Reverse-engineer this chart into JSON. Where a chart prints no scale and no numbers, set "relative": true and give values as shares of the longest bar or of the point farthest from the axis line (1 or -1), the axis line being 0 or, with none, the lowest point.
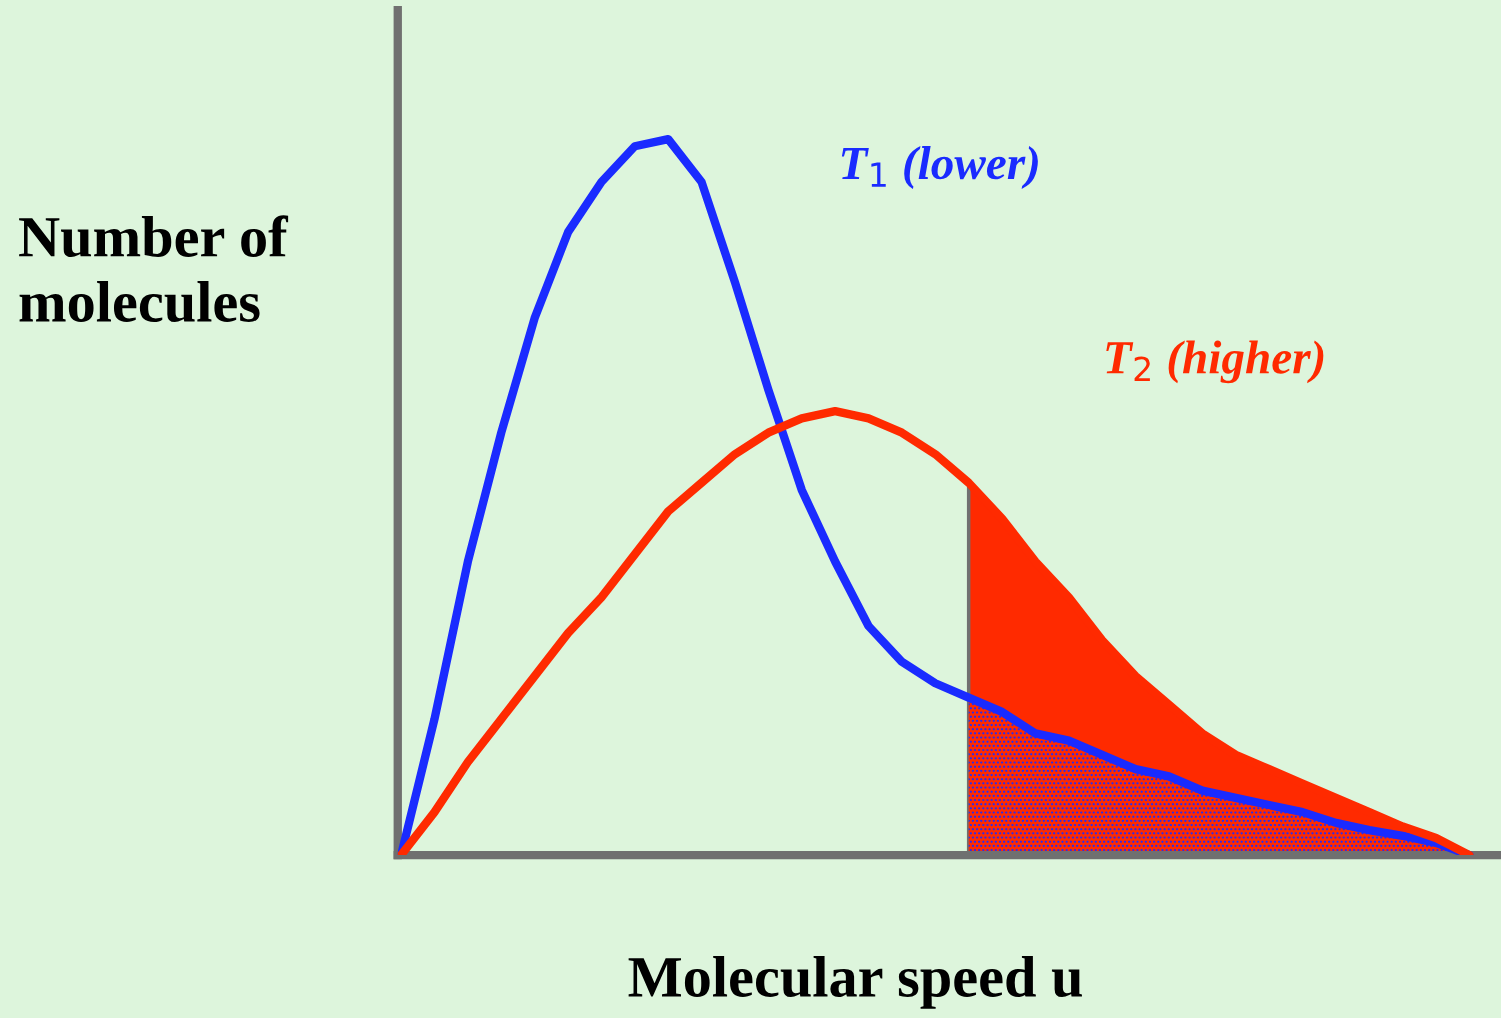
{
  "chart_data": {
    "type": "line",
    "relative": true,
    "xlabel": "Molecular speed u",
    "ylabel": "Number of\nmolecules",
    "categories": [
      null,
      null,
      null,
      null,
      null,
      null,
      null,
      null,
      null,
      null,
      null,
      null,
      null,
      null,
      null,
      null,
      null,
      null,
      null,
      null,
      null,
      null,
      null,
      null,
      null,
      null,
      null,
      null,
      null,
      null,
      null,
      null,
      null
    ],
    "series": [
      {
        "type": "area",
        "color": "#ff2a00",
        "values": [
          null,
          null,
          null,
          null,
          null,
          null,
          null,
          null,
          null,
          null,
          null,
          null,
          null,
          null,
          null,
          null,
          null,
          0.52,
          0.47,
          0.41,
          0.36,
          0.3,
          0.25,
          0.21,
          0.17,
          0.14,
          0.12,
          0.1,
          0.08,
          0.06,
          0.04,
          0.024,
          0
        ]
      },
      {
        "type": "area",
        "color": "#6a2fb0",
        "values": [
          null,
          null,
          null,
          null,
          null,
          null,
          null,
          null,
          null,
          null,
          null,
          null,
          null,
          null,
          null,
          null,
          null,
          0.22,
          0.2,
          0.17,
          0.16,
          0.14,
          0.12,
          0.11,
          0.09,
          0.08,
          0.07,
          0.06,
          0.045,
          0.035,
          0.027,
          0.017,
          0
        ]
      },
      {
        "name": "T$_{1}$ (lower)",
        "color": "#1a2bff",
        "values": [
          0,
          0.19,
          0.41,
          0.59,
          0.75,
          0.87,
          0.94,
          0.99,
          1.0,
          0.94,
          0.8,
          0.65,
          0.51,
          0.41,
          0.32,
          0.27,
          0.24,
          0.22,
          0.2,
          0.17,
          0.16,
          0.14,
          0.12,
          0.11,
          0.09,
          0.08,
          0.07,
          0.06,
          0.045,
          0.035,
          0.027,
          0.017,
          0
        ]
      },
      {
        "name": "T$_{2}$ (higher)",
        "color": "#ff2a00",
        "values": [
          0,
          0.06,
          0.13,
          0.19,
          0.25,
          0.31,
          0.36,
          0.42,
          0.48,
          0.52,
          0.56,
          0.59,
          0.61,
          0.62,
          0.61,
          0.59,
          0.56,
          0.52,
          0.47,
          0.41,
          0.36,
          0.3,
          0.25,
          0.21,
          0.17,
          0.14,
          0.12,
          0.1,
          0.08,
          0.06,
          0.04,
          0.024,
          0
        ]
      }
    ],
    "marker": "none",
    "line_style": "solid"
  }
}
